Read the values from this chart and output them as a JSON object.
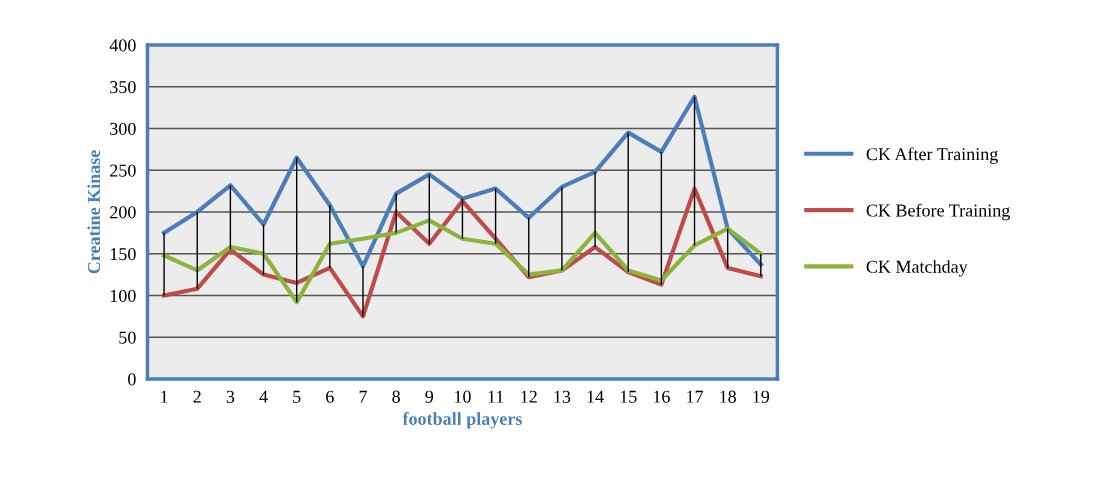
{
  "chart_data": {
    "type": "line",
    "xlabel": "football players",
    "ylabel": "Creatine Kinase",
    "categories": [
      "1",
      "2",
      "3",
      "4",
      "5",
      "6",
      "7",
      "8",
      "9",
      "10",
      "11",
      "12",
      "13",
      "14",
      "15",
      "16",
      "17",
      "18",
      "19"
    ],
    "ylim": [
      0,
      400
    ],
    "yticks": [
      0,
      50,
      100,
      150,
      200,
      250,
      300,
      350,
      400
    ],
    "grid": "y",
    "legend": "right",
    "marker": "none",
    "line_style": "solid",
    "series": [
      {
        "name": "CK After Training",
        "color": "#4a7ebb",
        "values": [
          175,
          200,
          232,
          185,
          265,
          208,
          135,
          222,
          245,
          216,
          228,
          193,
          230,
          248,
          295,
          272,
          338,
          180,
          137
        ],
        "errors": [
          [
            100,
            175
          ],
          [
            108,
            200
          ],
          [
            155,
            232
          ],
          [
            125,
            185
          ],
          [
            92,
            265
          ],
          [
            133,
            208
          ],
          [
            75,
            135
          ],
          [
            175,
            222
          ],
          [
            162,
            245
          ],
          [
            168,
            216
          ],
          [
            162,
            228
          ],
          [
            122,
            193
          ],
          [
            130,
            230
          ],
          [
            158,
            248
          ],
          [
            128,
            295
          ],
          [
            113,
            272
          ],
          [
            160,
            338
          ],
          [
            133,
            180
          ],
          [
            123,
            150
          ]
        ]
      },
      {
        "name": "CK Before Training",
        "color": "#be4b48",
        "values": [
          100,
          108,
          155,
          125,
          115,
          133,
          75,
          200,
          162,
          213,
          168,
          122,
          130,
          158,
          128,
          113,
          228,
          133,
          123
        ]
      },
      {
        "name": "CK Matchday",
        "color": "#8cb43c",
        "values": [
          148,
          130,
          158,
          150,
          92,
          162,
          168,
          175,
          190,
          168,
          162,
          125,
          130,
          175,
          130,
          118,
          160,
          180,
          150
        ]
      }
    ]
  }
}
